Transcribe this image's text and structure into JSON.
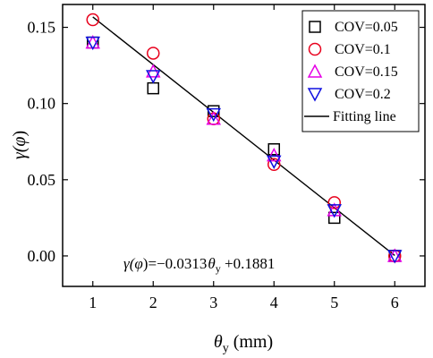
{
  "chart_data": {
    "type": "scatter",
    "xlabel_main": "θ",
    "xlabel_sub": "y",
    "xlabel_unit": " (mm)",
    "ylabel_main": "γ(",
    "ylabel_phi": "φ",
    "ylabel_close": ")",
    "xlim": [
      0.5,
      6.5
    ],
    "ylim": [
      -0.02,
      0.165
    ],
    "xticks": [
      1,
      2,
      3,
      4,
      5,
      6
    ],
    "yticks": [
      0.0,
      0.05,
      0.1,
      0.15
    ],
    "ytick_labels": [
      "0.00",
      "0.05",
      "0.10",
      "0.15"
    ],
    "legend_placement": "top-right",
    "series": [
      {
        "name": "COV=0.05",
        "marker": "square",
        "color": "#000000",
        "x": [
          1,
          2,
          3,
          4,
          5,
          6
        ],
        "y": [
          0.14,
          0.11,
          0.095,
          0.07,
          0.025,
          0.0
        ]
      },
      {
        "name": "COV=0.1",
        "marker": "circle",
        "color": "#e8001c",
        "x": [
          1,
          2,
          3,
          4,
          5,
          6
        ],
        "y": [
          0.155,
          0.133,
          0.09,
          0.06,
          0.035,
          0.0
        ]
      },
      {
        "name": "COV=0.15",
        "marker": "triangle-up",
        "color": "#e600e6",
        "x": [
          1,
          2,
          3,
          4,
          5,
          6
        ],
        "y": [
          0.14,
          0.121,
          0.09,
          0.066,
          0.03,
          0.0
        ]
      },
      {
        "name": "COV=0.2",
        "marker": "triangle-down",
        "color": "#1010e0",
        "x": [
          1,
          2,
          3,
          4,
          5,
          6
        ],
        "y": [
          0.14,
          0.118,
          0.093,
          0.062,
          0.03,
          0.0
        ]
      }
    ],
    "fit_line": {
      "name": "Fitting line",
      "slope": -0.0313,
      "intercept": 0.1881,
      "x_range": [
        1,
        6
      ]
    },
    "equation": {
      "lhs_main": "γ(",
      "lhs_phi": "φ",
      "lhs_close": ")=−0.0313",
      "theta": "θ",
      "theta_sub": "y",
      "rhs": " +0.1881"
    }
  }
}
